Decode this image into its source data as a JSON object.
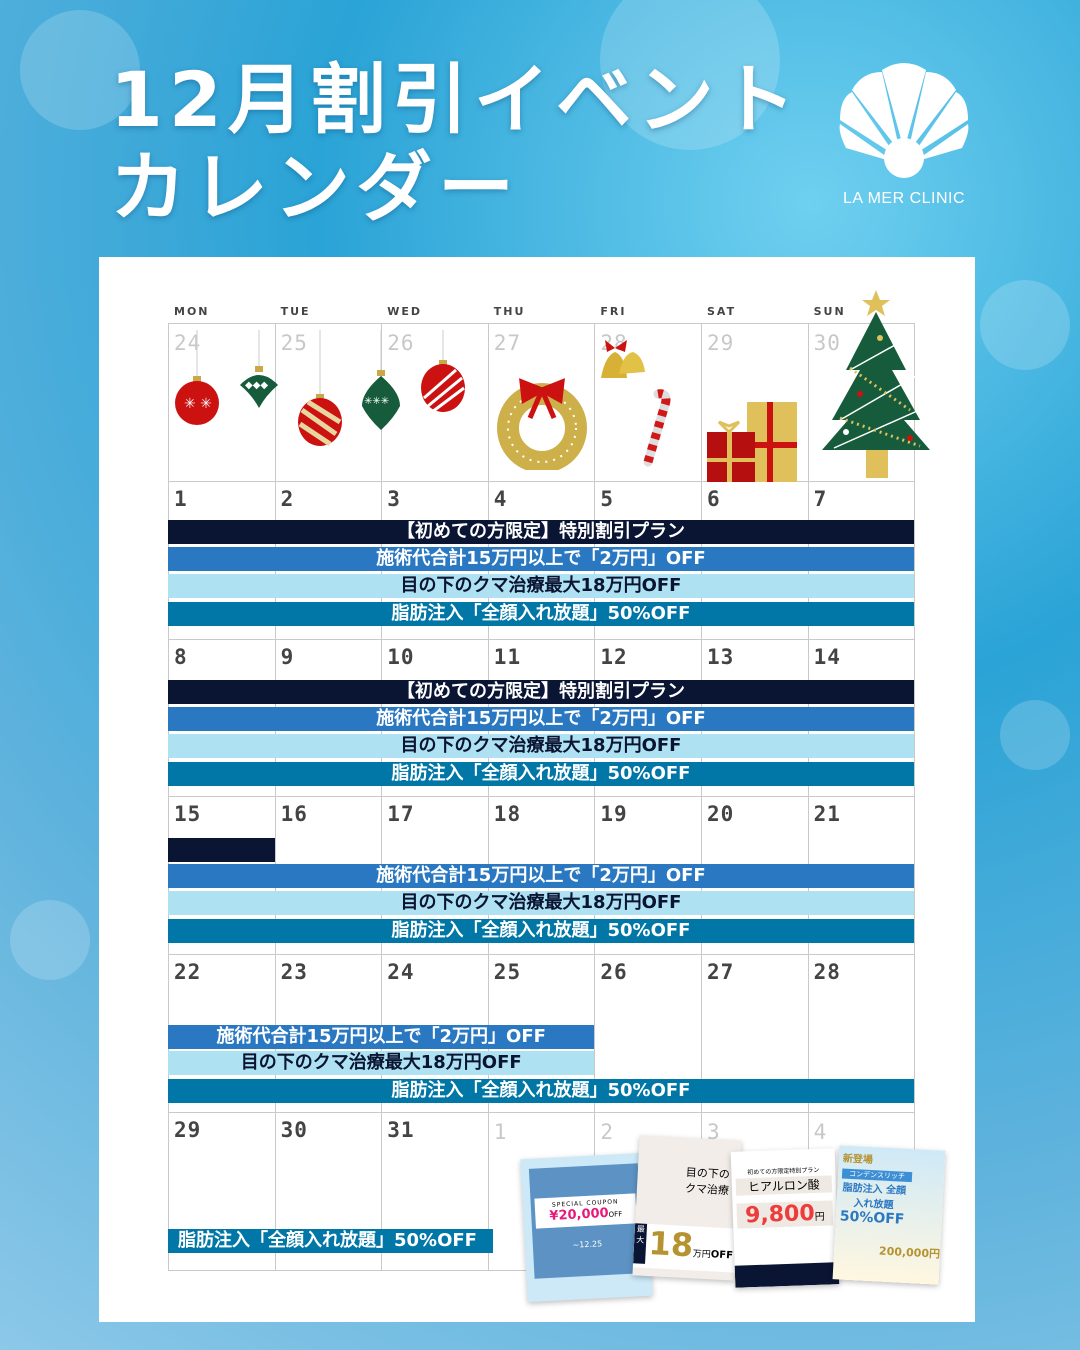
{
  "header": {
    "title_line1": "12月割引イベント",
    "title_line2": "カレンダー",
    "logo_text": "LA MER CLINIC"
  },
  "colors": {
    "navy": "#0a1433",
    "blue": "#2a78c2",
    "light_blue": "#aee2f2",
    "teal": "#0077a6"
  },
  "calendar": {
    "weekdays": [
      "MON",
      "TUE",
      "WED",
      "THU",
      "FRI",
      "SAT",
      "SUN"
    ],
    "weeks": [
      {
        "days": [
          "24",
          "25",
          "26",
          "27",
          "28",
          "29",
          "30"
        ],
        "muted": [
          true,
          true,
          true,
          true,
          true,
          true,
          true
        ]
      },
      {
        "days": [
          "1",
          "2",
          "3",
          "4",
          "5",
          "6",
          "7"
        ]
      },
      {
        "days": [
          "8",
          "9",
          "10",
          "11",
          "12",
          "13",
          "14"
        ]
      },
      {
        "days": [
          "15",
          "16",
          "17",
          "18",
          "19",
          "20",
          "21"
        ]
      },
      {
        "days": [
          "22",
          "23",
          "24",
          "25",
          "26",
          "27",
          "28"
        ]
      },
      {
        "days": [
          "29",
          "30",
          "31",
          "1",
          "2",
          "3",
          "4"
        ],
        "muted": [
          false,
          false,
          false,
          true,
          true,
          true,
          true
        ]
      }
    ],
    "events": {
      "first_time": "【初めての方限定】特別割引プラン",
      "total_discount": "施術代合計15万円以上で「2万円」OFF",
      "dark_circles": "目の下のクマ治療最大18万円OFF",
      "fat_injection": "脂肪注入「全顔入れ放題」50%OFF"
    },
    "decorations": [
      "ornament-icon",
      "wreath-icon",
      "bell-icon",
      "candy-cane-icon",
      "gift-icon",
      "christmas-tree-icon"
    ]
  },
  "flyers": [
    {
      "tag": "SPECIAL COUPON",
      "price": "¥20,000",
      "off": "OFF",
      "period": "~12.25"
    },
    {
      "title": "目の下のクマ治療",
      "badge": "最大",
      "amount": "18",
      "unit": "万円",
      "off": "OFF"
    },
    {
      "subtitle": "初めての方限定特別プラン",
      "title": "ヒアルロン酸",
      "price": "9,800",
      "unit": "円"
    },
    {
      "badge": "新登場",
      "subtitle": "コンデンスリッチ",
      "title": "脂肪注入 全顔入れ放題",
      "discount": "50%OFF",
      "price": "200,000円"
    }
  ]
}
